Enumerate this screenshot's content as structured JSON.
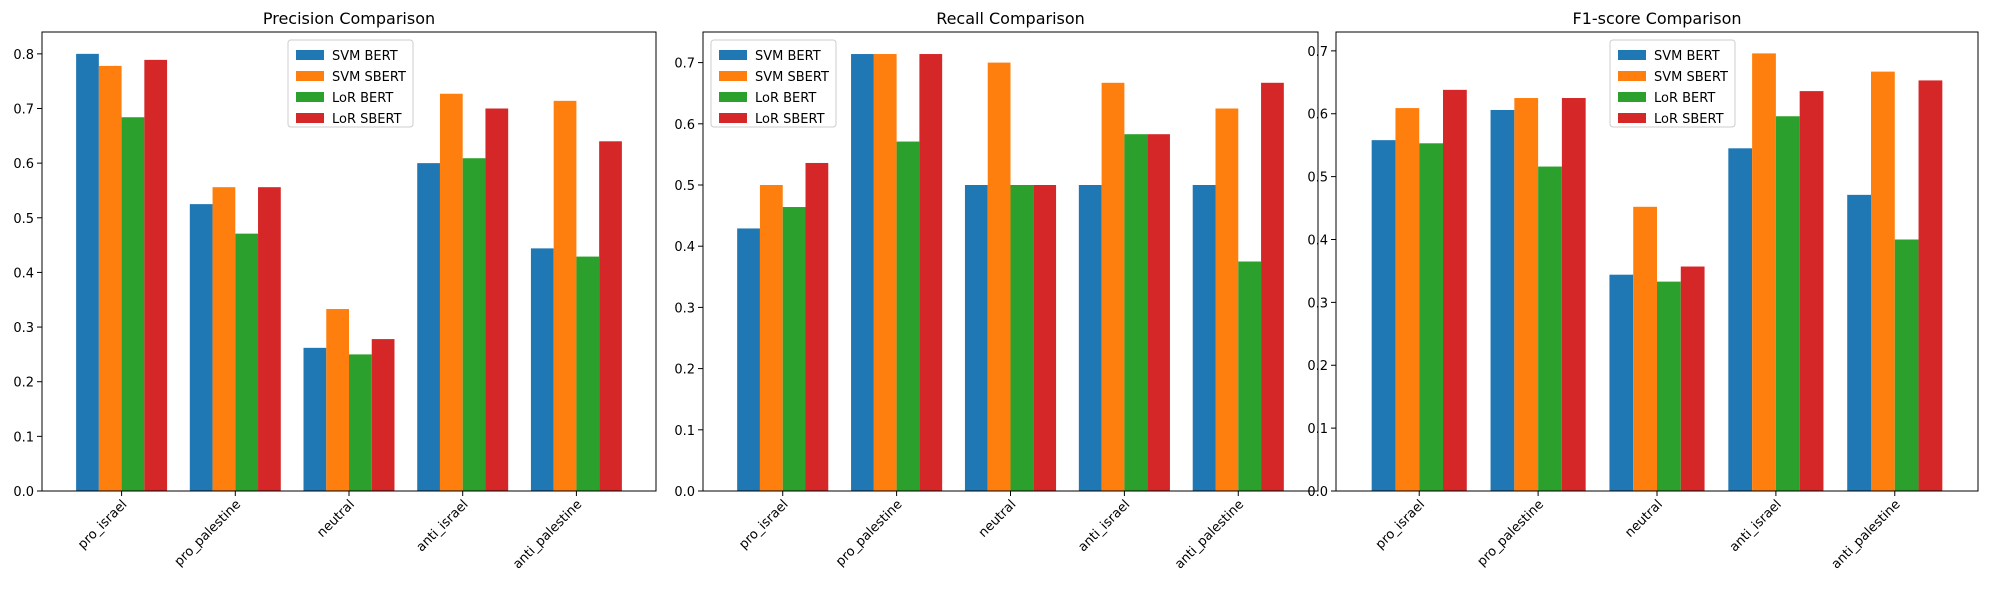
{
  "colors": {
    "SVM BERT": "#1f77b4",
    "SVM SBERT": "#ff7f0e",
    "LoR BERT": "#2ca02c",
    "LoR SBERT": "#d62728"
  },
  "chart_data": [
    {
      "type": "bar",
      "title": "Precision Comparison",
      "categories": [
        "pro_israel",
        "pro_palestine",
        "neutral",
        "anti_israel",
        "anti_palestine"
      ],
      "ylim": [
        0,
        0.84
      ],
      "yticks": [
        0.0,
        0.1,
        0.2,
        0.3,
        0.4,
        0.5,
        0.6,
        0.7,
        0.8
      ],
      "legend": "upper center",
      "grid": false,
      "series": [
        {
          "name": "SVM BERT",
          "values": [
            0.8,
            0.525,
            0.262,
            0.6,
            0.444
          ]
        },
        {
          "name": "SVM SBERT",
          "values": [
            0.778,
            0.556,
            0.333,
            0.727,
            0.714
          ]
        },
        {
          "name": "LoR BERT",
          "values": [
            0.684,
            0.471,
            0.25,
            0.609,
            0.429
          ]
        },
        {
          "name": "LoR SBERT",
          "values": [
            0.789,
            0.556,
            0.278,
            0.7,
            0.64
          ]
        }
      ]
    },
    {
      "type": "bar",
      "title": "Recall Comparison",
      "categories": [
        "pro_israel",
        "pro_palestine",
        "neutral",
        "anti_israel",
        "anti_palestine"
      ],
      "ylim": [
        0,
        0.75
      ],
      "yticks": [
        0.0,
        0.1,
        0.2,
        0.3,
        0.4,
        0.5,
        0.6,
        0.7
      ],
      "legend": "upper left",
      "grid": false,
      "series": [
        {
          "name": "SVM BERT",
          "values": [
            0.429,
            0.714,
            0.5,
            0.5,
            0.5
          ]
        },
        {
          "name": "SVM SBERT",
          "values": [
            0.5,
            0.714,
            0.7,
            0.667,
            0.625
          ]
        },
        {
          "name": "LoR BERT",
          "values": [
            0.464,
            0.571,
            0.5,
            0.583,
            0.375
          ]
        },
        {
          "name": "LoR SBERT",
          "values": [
            0.536,
            0.714,
            0.5,
            0.583,
            0.667
          ]
        }
      ]
    },
    {
      "type": "bar",
      "title": "F1-score Comparison",
      "categories": [
        "pro_israel",
        "pro_palestine",
        "neutral",
        "anti_israel",
        "anti_palestine"
      ],
      "ylim": [
        0,
        0.73
      ],
      "yticks": [
        0.0,
        0.1,
        0.2,
        0.3,
        0.4,
        0.5,
        0.6,
        0.7
      ],
      "legend": "upper center",
      "grid": false,
      "series": [
        {
          "name": "SVM BERT",
          "values": [
            0.558,
            0.606,
            0.344,
            0.545,
            0.471
          ]
        },
        {
          "name": "SVM SBERT",
          "values": [
            0.609,
            0.625,
            0.452,
            0.696,
            0.667
          ]
        },
        {
          "name": "LoR BERT",
          "values": [
            0.553,
            0.516,
            0.333,
            0.596,
            0.4
          ]
        },
        {
          "name": "LoR SBERT",
          "values": [
            0.638,
            0.625,
            0.357,
            0.636,
            0.653
          ]
        }
      ]
    }
  ]
}
